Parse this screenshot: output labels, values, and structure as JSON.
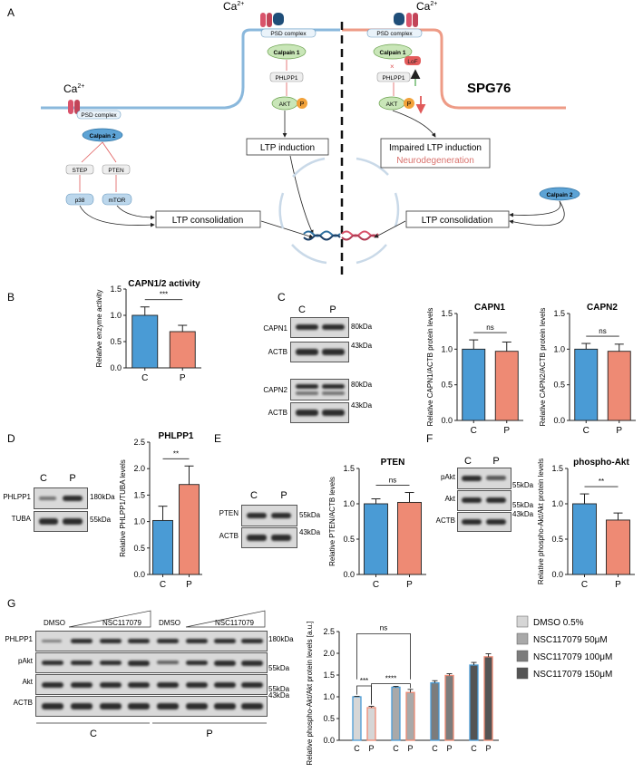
{
  "colors": {
    "ctrl": "#4a9bd5",
    "pat": "#ee8a74",
    "pathway": "#8ab8dc",
    "pathway_right": "#ee9b86",
    "green": "#86c586",
    "red": "#e05a5a",
    "neuro": "#d9716c",
    "dna_blue": "#2e6f9e",
    "dna_red": "#d9536b"
  },
  "panelA": {
    "letter": "A",
    "ca": "Ca",
    "ca_sup": "2+",
    "psd": "PSD complex",
    "calpain1": "Calpain 1",
    "calpain2": "Calpain 2",
    "phlpp1": "PHLPP1",
    "akt": "AKT",
    "p": "P",
    "ltp_induction": "LTP induction",
    "impaired": "Impaired LTP induction",
    "neuro": "Neurodegeneration",
    "ltp_consolidation": "LTP consolidation",
    "spg76": "SPG76",
    "loF": "LoF",
    "step": "STEP",
    "pten": "PTEN",
    "p38": "p38",
    "mtor": "mTOR"
  },
  "panelB": {
    "letter": "B",
    "title": "CAPN1/2 activity",
    "ylabel": "Relative enzyme activity",
    "sig": "***"
  },
  "panelC": {
    "letter": "C",
    "lane_c": "C",
    "lane_p": "P",
    "rows": [
      "CAPN1",
      "ACTB",
      "CAPN2",
      "ACTB"
    ],
    "kda": [
      "80kDa",
      "43kDa",
      "80kDa",
      "43kDa"
    ],
    "capn1_title": "CAPN1",
    "capn1_ylabel": "Relative CAPN1/ACTB protein levels",
    "capn2_title": "CAPN2",
    "capn2_ylabel": "Relative CAPN2/ACTB protein levels",
    "ns": "ns"
  },
  "panelD": {
    "letter": "D",
    "lane_c": "C",
    "lane_p": "P",
    "rows": [
      "PHLPP1",
      "TUBA"
    ],
    "kda": [
      "180kDa",
      "55kDa"
    ],
    "title": "PHLPP1",
    "ylabel": "Relative PHLPP1/TUBA levels",
    "sig": "**"
  },
  "panelE": {
    "letter": "E",
    "lane_c": "C",
    "lane_p": "P",
    "rows": [
      "PTEN",
      "ACTB"
    ],
    "kda": [
      "55kDa",
      "43kDa"
    ],
    "title": "PTEN",
    "ylabel": "Relative PTEN/ACTB levels",
    "ns": "ns"
  },
  "panelF": {
    "letter": "F",
    "lane_c": "C",
    "lane_p": "P",
    "rows": [
      "pAkt",
      "Akt",
      "ACTB"
    ],
    "kda": [
      "55kDa",
      "55kDa",
      "43kDa"
    ],
    "title": "phospho-Akt",
    "ylabel": "Relative phospho-Akt/Akt protein levels",
    "sig": "**"
  },
  "panelG": {
    "letter": "G",
    "dmso": "DMSO",
    "compound": "NSC117079",
    "rows": [
      "PHLPP1",
      "pAkt",
      "Akt",
      "ACTB"
    ],
    "kda": [
      "180kDa",
      "55kDa",
      "55kDa",
      "43kDa"
    ],
    "group_c": "C",
    "group_p": "P",
    "ylabel": "Relative phospho-Akt/Akt protein levels [a.u.]",
    "sig1": "***",
    "sig2": "****",
    "ns": "ns",
    "legend": [
      "DMSO 0.5%",
      "NSC117079 50μM",
      "NSC117079 100μM",
      "NSC117079 150μM"
    ],
    "legend_colors": [
      "#d6d6d6",
      "#a9a9a9",
      "#7c7c7c",
      "#545454"
    ]
  },
  "axis_unit": "[a.u.]",
  "chart_data": [
    {
      "type": "bar",
      "panel": "B",
      "title": "CAPN1/2 activity",
      "ylabel": "Relative enzyme activity",
      "categories": [
        "C",
        "P"
      ],
      "values": [
        1.0,
        0.69
      ],
      "errors": [
        0.16,
        0.12
      ],
      "ylim": [
        0,
        1.5
      ],
      "yticks": [
        0.0,
        0.5,
        1.0,
        1.5
      ]
    },
    {
      "type": "bar",
      "panel": "C",
      "title": "CAPN1",
      "ylabel": "Relative CAPN1/ACTB protein levels",
      "categories": [
        "C",
        "P"
      ],
      "values": [
        1.0,
        0.97
      ],
      "errors": [
        0.13,
        0.13
      ],
      "ylim": [
        0,
        1.5
      ],
      "yticks": [
        0.0,
        0.5,
        1.0,
        1.5
      ]
    },
    {
      "type": "bar",
      "panel": "C",
      "title": "CAPN2",
      "ylabel": "Relative CAPN2/ACTB protein levels",
      "categories": [
        "C",
        "P"
      ],
      "values": [
        1.0,
        0.97
      ],
      "errors": [
        0.08,
        0.1
      ],
      "ylim": [
        0,
        1.5
      ],
      "yticks": [
        0.0,
        0.5,
        1.0,
        1.5
      ]
    },
    {
      "type": "bar",
      "panel": "D",
      "title": "PHLPP1",
      "ylabel": "Relative PHLPP1/TUBA levels",
      "categories": [
        "C",
        "P"
      ],
      "values": [
        1.02,
        1.7
      ],
      "errors": [
        0.27,
        0.35
      ],
      "ylim": [
        0,
        2.5
      ],
      "yticks": [
        0.0,
        0.5,
        1.0,
        1.5,
        2.0,
        2.5
      ]
    },
    {
      "type": "bar",
      "panel": "E",
      "title": "PTEN",
      "ylabel": "Relative PTEN/ACTB levels",
      "categories": [
        "C",
        "P"
      ],
      "values": [
        1.0,
        1.02
      ],
      "errors": [
        0.07,
        0.14
      ],
      "ylim": [
        0,
        1.5
      ],
      "yticks": [
        0.0,
        0.5,
        1.0,
        1.5
      ]
    },
    {
      "type": "bar",
      "panel": "F",
      "title": "phospho-Akt",
      "ylabel": "Relative phospho-Akt/Akt protein levels",
      "categories": [
        "C",
        "P"
      ],
      "values": [
        1.0,
        0.77
      ],
      "errors": [
        0.14,
        0.1
      ],
      "ylim": [
        0,
        1.5
      ],
      "yticks": [
        0.0,
        0.5,
        1.0,
        1.5
      ]
    },
    {
      "type": "bar",
      "panel": "G",
      "ylabel": "Relative phospho-Akt/Akt protein levels [a.u.]",
      "categories": [
        "C",
        "P"
      ],
      "series": [
        {
          "name": "DMSO 0.5%",
          "values": [
            1.0,
            0.75
          ],
          "errors": [
            0.01,
            0.03
          ]
        },
        {
          "name": "NSC117079 50μM",
          "values": [
            1.22,
            1.1
          ],
          "errors": [
            0.02,
            0.07
          ]
        },
        {
          "name": "NSC117079 100μM",
          "values": [
            1.32,
            1.49
          ],
          "errors": [
            0.05,
            0.04
          ]
        },
        {
          "name": "NSC117079 150μM",
          "values": [
            1.73,
            1.92
          ],
          "errors": [
            0.06,
            0.07
          ]
        }
      ],
      "ylim": [
        0,
        2.5
      ],
      "yticks": [
        0.0,
        0.5,
        1.0,
        1.5,
        2.0,
        2.5
      ]
    }
  ]
}
